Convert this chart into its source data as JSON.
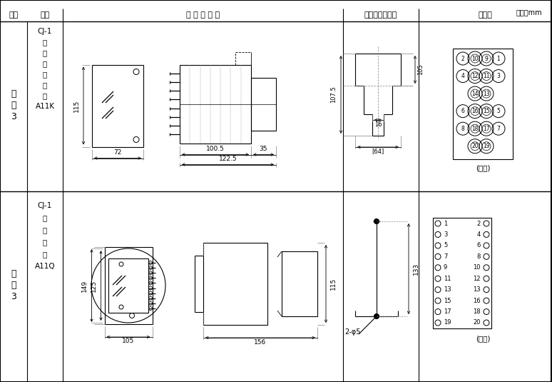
{
  "title_unit": "单位：mm",
  "col_headers": [
    "图号",
    "结构",
    "外 形 尺 尧 图",
    "安装开孔尺尧图",
    "端子图"
  ],
  "row1_left": [
    "附",
    "图",
    "3"
  ],
  "row1_struct": [
    "CJ-1",
    "嵌",
    "入",
    "式",
    "后",
    "接",
    "线",
    "A11K"
  ],
  "row2_left": [
    "附",
    "图",
    "3"
  ],
  "row2_struct": [
    "CJ-1",
    "板",
    "前",
    "接",
    "线",
    "A11Q"
  ],
  "bg_color": "#ffffff",
  "line_color": "#000000"
}
